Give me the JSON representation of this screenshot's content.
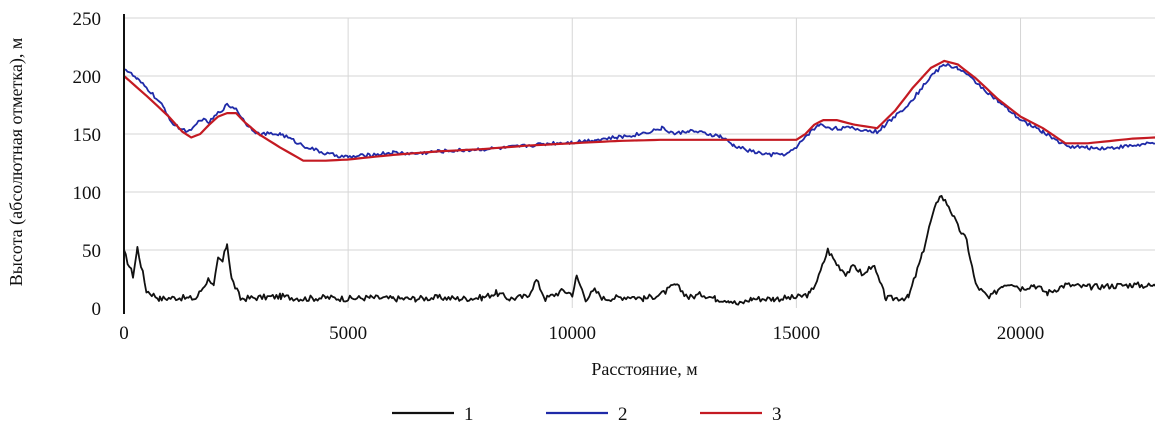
{
  "chart_data": {
    "type": "line",
    "title": "",
    "xlabel": "Расстояние, м",
    "ylabel": "Высота (абсолютная отметка), м",
    "xlim": [
      0,
      23000
    ],
    "ylim": [
      0,
      250
    ],
    "xticks": [
      0,
      5000,
      10000,
      15000,
      20000
    ],
    "yticks": [
      0,
      50,
      100,
      150,
      200,
      250
    ],
    "grid": true,
    "legend_position": "bottom-center",
    "series": [
      {
        "name": "1",
        "color": "#111111",
        "x": [
          0,
          200,
          300,
          500,
          800,
          1200,
          1600,
          1900,
          2000,
          2100,
          2200,
          2300,
          2400,
          2600,
          3000,
          3500,
          4000,
          4500,
          5000,
          5500,
          6000,
          6500,
          7000,
          7500,
          8000,
          8300,
          8600,
          9000,
          9200,
          9400,
          9800,
          10000,
          10100,
          10300,
          10500,
          10700,
          11000,
          11300,
          11600,
          12000,
          12300,
          12600,
          12900,
          13200,
          13500,
          13700,
          14000,
          14500,
          15000,
          15300,
          15500,
          15700,
          15900,
          16100,
          16300,
          16500,
          16700,
          17000,
          17500,
          17800,
          18000,
          18200,
          18400,
          18600,
          18800,
          19000,
          19300,
          19600,
          19800,
          20000,
          20300,
          20600,
          21000,
          21500,
          22000,
          22500,
          23000
        ],
        "values": [
          48,
          28,
          52,
          15,
          8,
          9,
          8,
          26,
          18,
          42,
          40,
          56,
          25,
          8,
          9,
          10,
          8,
          9,
          8,
          9,
          8,
          8,
          9,
          8,
          9,
          13,
          8,
          10,
          24,
          8,
          15,
          12,
          27,
          8,
          15,
          8,
          9,
          10,
          8,
          12,
          20,
          9,
          12,
          8,
          7,
          3,
          8,
          8,
          9,
          12,
          27,
          50,
          38,
          30,
          36,
          28,
          38,
          8,
          9,
          45,
          75,
          98,
          88,
          70,
          58,
          20,
          8,
          20,
          22,
          17,
          20,
          13,
          20,
          18,
          19,
          20,
          19
        ]
      },
      {
        "name": "2",
        "color": "#1f2aa8",
        "x": [
          0,
          300,
          600,
          900,
          1100,
          1300,
          1500,
          1700,
          1900,
          2100,
          2300,
          2500,
          2700,
          3000,
          3500,
          4000,
          4500,
          5000,
          5500,
          6000,
          6500,
          7000,
          7500,
          8000,
          8500,
          9000,
          9500,
          10000,
          10500,
          11000,
          11500,
          12000,
          12300,
          12600,
          13000,
          13300,
          13600,
          14000,
          14400,
          14800,
          15000,
          15200,
          15500,
          15800,
          16200,
          16800,
          17200,
          17600,
          18000,
          18300,
          18600,
          19000,
          19500,
          20000,
          20500,
          21000,
          21500,
          22000,
          22500,
          23000
        ],
        "values": [
          207,
          197,
          186,
          172,
          158,
          154,
          152,
          163,
          160,
          168,
          175,
          172,
          160,
          150,
          150,
          140,
          133,
          130,
          132,
          134,
          133,
          135,
          136,
          137,
          138,
          140,
          142,
          143,
          145,
          147,
          150,
          155,
          150,
          153,
          150,
          148,
          140,
          135,
          132,
          133,
          138,
          148,
          158,
          155,
          155,
          152,
          165,
          180,
          200,
          210,
          207,
          195,
          178,
          162,
          152,
          140,
          138,
          138,
          140,
          142
        ]
      },
      {
        "name": "3",
        "color": "#c41a22",
        "x": [
          0,
          500,
          1000,
          1300,
          1500,
          1700,
          1900,
          2100,
          2300,
          2500,
          2700,
          3000,
          3500,
          4000,
          4500,
          5000,
          6000,
          7000,
          8000,
          9000,
          10000,
          11000,
          12000,
          13000,
          13500,
          14000,
          14500,
          15000,
          15200,
          15400,
          15600,
          15900,
          16300,
          16800,
          17200,
          17600,
          18000,
          18300,
          18600,
          19000,
          19500,
          20000,
          20500,
          21000,
          21500,
          22000,
          22500,
          23000
        ],
        "values": [
          200,
          183,
          165,
          152,
          147,
          150,
          158,
          165,
          168,
          168,
          160,
          150,
          138,
          127,
          127,
          128,
          132,
          135,
          137,
          140,
          142,
          144,
          145,
          145,
          145,
          145,
          145,
          145,
          150,
          158,
          162,
          162,
          158,
          155,
          170,
          190,
          207,
          213,
          210,
          198,
          180,
          165,
          155,
          142,
          142,
          144,
          146,
          147
        ]
      }
    ]
  }
}
